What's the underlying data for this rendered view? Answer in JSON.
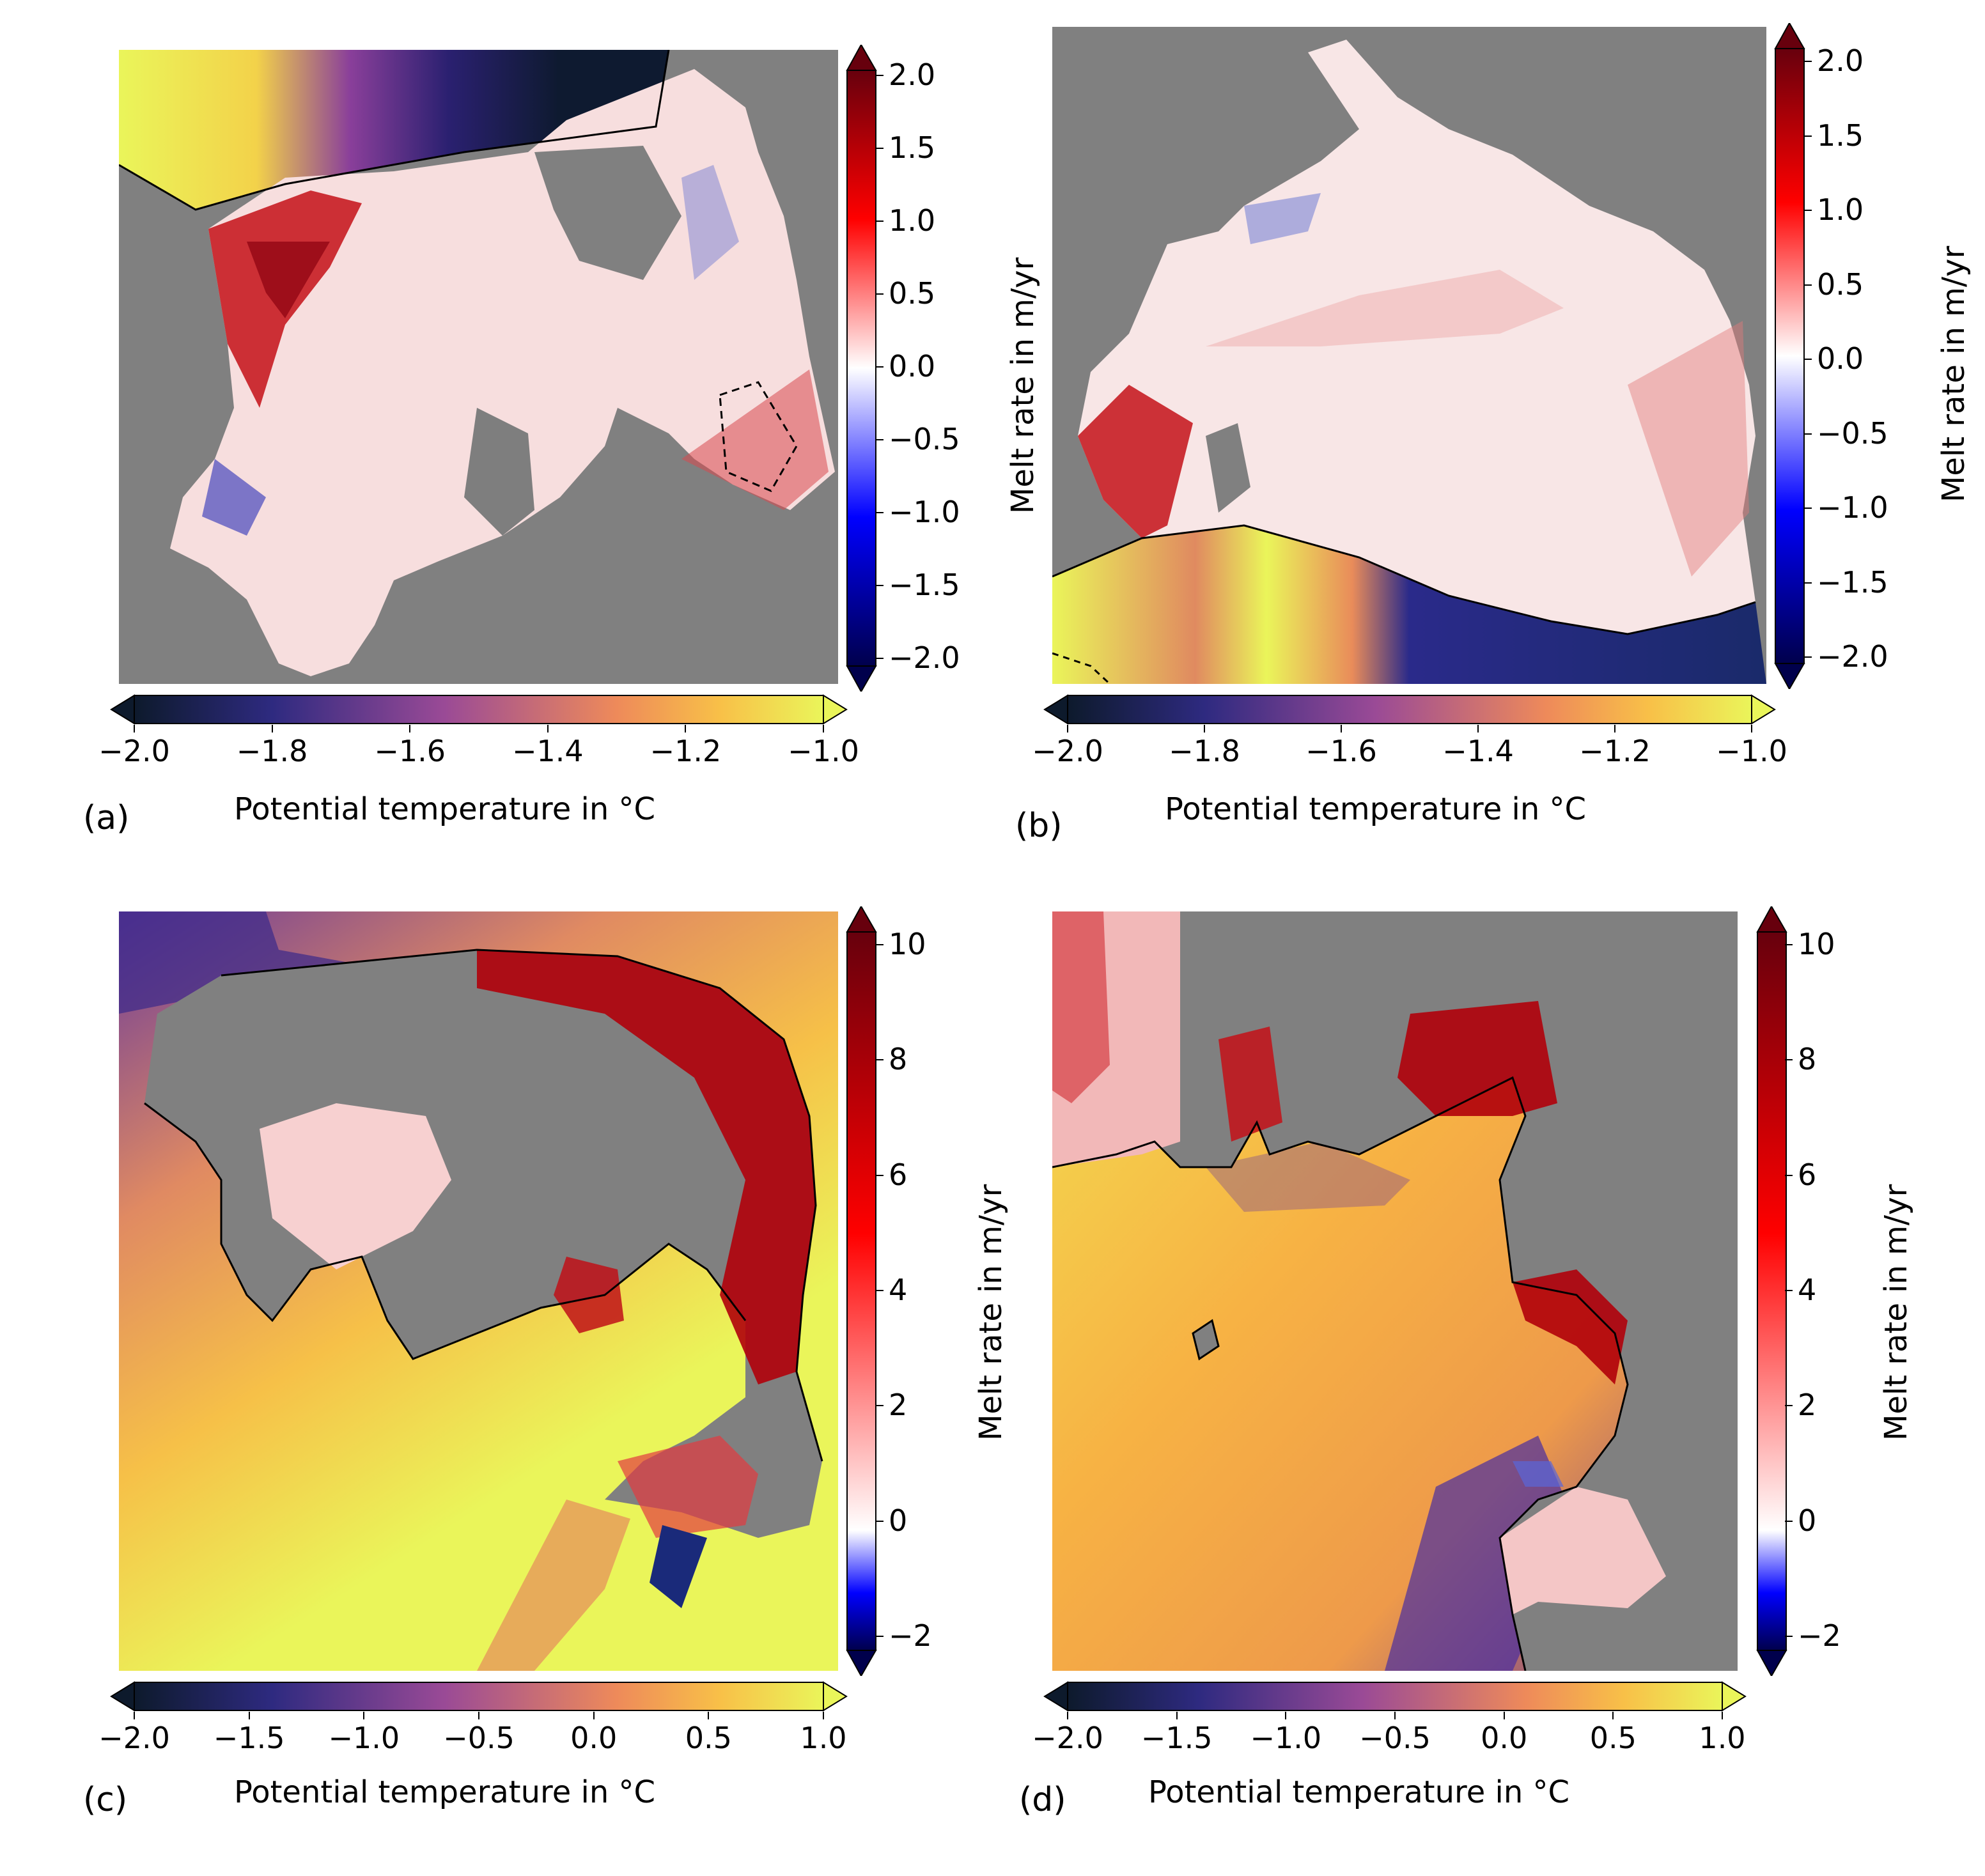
{
  "panels": [
    {
      "id": "a",
      "panel_label": "(a)",
      "vertical_colorbar": {
        "label": "Melt rate in m/yr",
        "ticks": [
          "2.0",
          "1.5",
          "1.0",
          "0.5",
          "0.0",
          "−0.5",
          "−1.0",
          "−1.5",
          "−2.0"
        ],
        "range": [
          -2.0,
          2.0
        ],
        "colormap": "seismic",
        "extend": "both"
      },
      "horizontal_colorbar": {
        "label": "Potential temperature in °C",
        "ticks": [
          "−2.0",
          "−1.8",
          "−1.6",
          "−1.4",
          "−1.2",
          "−1.0"
        ],
        "range": [
          -2.0,
          -1.0
        ],
        "colormap": "plasma-like",
        "extend": "both"
      }
    },
    {
      "id": "b",
      "panel_label": "(b)",
      "vertical_colorbar": {
        "label": "Melt rate in m/yr",
        "ticks": [
          "2.0",
          "1.5",
          "1.0",
          "0.5",
          "0.0",
          "−0.5",
          "−1.0",
          "−1.5",
          "−2.0"
        ],
        "range": [
          -2.0,
          2.0
        ],
        "colormap": "seismic",
        "extend": "both"
      },
      "horizontal_colorbar": {
        "label": "Potential temperature in °C",
        "ticks": [
          "−2.0",
          "−1.8",
          "−1.6",
          "−1.4",
          "−1.2",
          "−1.0"
        ],
        "range": [
          -2.0,
          -1.0
        ],
        "colormap": "plasma-like",
        "extend": "both"
      }
    },
    {
      "id": "c",
      "panel_label": "(c)",
      "vertical_colorbar": {
        "label": "Melt rate in m/yr",
        "ticks": [
          "10",
          "8",
          "6",
          "4",
          "2",
          "0",
          "−2"
        ],
        "range": [
          -2,
          10
        ],
        "colormap": "seismic",
        "extend": "both"
      },
      "horizontal_colorbar": {
        "label": "Potential temperature in °C",
        "ticks": [
          "−2.0",
          "−1.5",
          "−1.0",
          "−0.5",
          "0.0",
          "0.5",
          "1.0"
        ],
        "range": [
          -2.0,
          1.0
        ],
        "colormap": "plasma-like",
        "extend": "both"
      }
    },
    {
      "id": "d",
      "panel_label": "(d)",
      "vertical_colorbar": {
        "label": "Melt rate in m/yr",
        "ticks": [
          "10",
          "8",
          "6",
          "4",
          "2",
          "0",
          "−2"
        ],
        "range": [
          -2,
          10
        ],
        "colormap": "seismic",
        "extend": "both"
      },
      "horizontal_colorbar": {
        "label": "Potential temperature in °C",
        "ticks": [
          "−2.0",
          "−1.5",
          "−1.0",
          "−0.5",
          "0.0",
          "0.5",
          "1.0"
        ],
        "range": [
          -2.0,
          1.0
        ],
        "colormap": "plasma-like",
        "extend": "both"
      }
    }
  ],
  "colors": {
    "land_mask": "#808080",
    "melt_max": "#67000d",
    "melt_mid": "#ffffff",
    "melt_min": "#00004c",
    "temp_min": "#0d1a2c",
    "temp_max": "#eaf55a"
  }
}
